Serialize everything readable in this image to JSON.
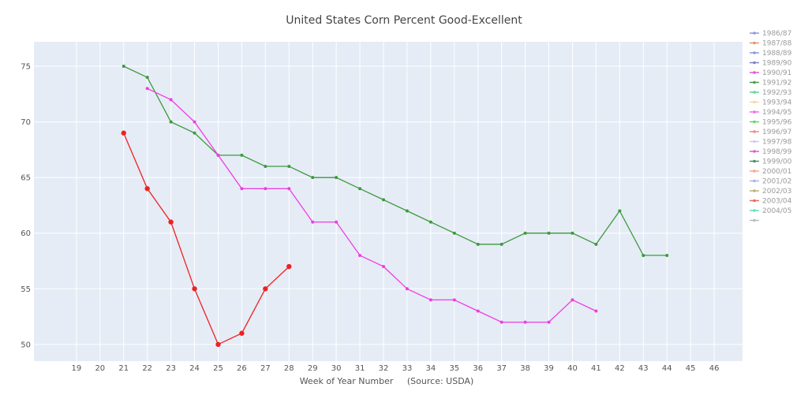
{
  "chart_data": {
    "type": "line",
    "title": "United States Corn Percent Good-Excellent",
    "xlabel": "Week of Year Number     (Source: USDA)",
    "ylabel": "",
    "x_ticks": [
      19,
      20,
      21,
      22,
      23,
      24,
      25,
      26,
      27,
      28,
      29,
      30,
      31,
      32,
      33,
      34,
      35,
      36,
      37,
      38,
      39,
      40,
      41,
      42,
      43,
      44,
      45,
      46
    ],
    "y_ticks": [
      50,
      55,
      60,
      65,
      70,
      75
    ],
    "xlim": [
      17.2,
      47.2
    ],
    "ylim": [
      48.5,
      77.2
    ],
    "grid": true,
    "legend_placement": "right",
    "legend": [
      {
        "name": "1986/87",
        "color": "#8f9ad6"
      },
      {
        "name": "1987/88",
        "color": "#e8946c"
      },
      {
        "name": "1988/89",
        "color": "#8f9ad6"
      },
      {
        "name": "1989/90",
        "color": "#7c84c8"
      },
      {
        "name": "1990/91",
        "color": "#e05ad6"
      },
      {
        "name": "1991/92",
        "color": "#4b9e4b"
      },
      {
        "name": "1992/93",
        "color": "#5fd49a"
      },
      {
        "name": "1993/94",
        "color": "#f2d9a4"
      },
      {
        "name": "1994/95",
        "color": "#ee6ee8"
      },
      {
        "name": "1995/96",
        "color": "#66d66e"
      },
      {
        "name": "1996/97",
        "color": "#ef8a84"
      },
      {
        "name": "1997/98",
        "color": "#d6c6f0"
      },
      {
        "name": "1998/99",
        "color": "#e05ad6"
      },
      {
        "name": "1999/00",
        "color": "#4b8e6b"
      },
      {
        "name": "2000/01",
        "color": "#f4a98a"
      },
      {
        "name": "2001/02",
        "color": "#aab4e8"
      },
      {
        "name": "2002/03",
        "color": "#b6b47a"
      },
      {
        "name": "2003/04",
        "color": "#ec6b5a"
      },
      {
        "name": "2004/05",
        "color": "#62e0c0"
      }
    ],
    "series": [
      {
        "color": "#3d9a3d",
        "marker_size": 2,
        "x": [
          21,
          22,
          23,
          24,
          25,
          26,
          27,
          28,
          29,
          30,
          31,
          32,
          33,
          34,
          35,
          36,
          37,
          38,
          39,
          40,
          41,
          42,
          43,
          44
        ],
        "y": [
          75,
          74,
          70,
          69,
          67,
          67,
          66,
          66,
          65,
          65,
          64,
          63,
          62,
          61,
          60,
          59,
          59,
          60,
          60,
          60,
          59,
          62,
          58,
          58
        ]
      },
      {
        "color": "#ee3ee2",
        "marker_size": 2,
        "x": [
          22,
          23,
          24,
          25,
          26,
          27,
          28,
          29,
          30,
          31,
          32,
          33,
          34,
          35,
          36,
          37,
          38,
          39,
          40,
          41
        ],
        "y": [
          73,
          72,
          70,
          67,
          64,
          64,
          64,
          61,
          61,
          58,
          57,
          55,
          54,
          54,
          53,
          52,
          52,
          52,
          54,
          53
        ]
      },
      {
        "color": "#ee2222",
        "marker_size": 3.2,
        "x": [
          21,
          22,
          23,
          24,
          25,
          26,
          27,
          28
        ],
        "y": [
          69,
          64,
          61,
          55,
          50,
          51,
          55,
          57
        ]
      }
    ]
  }
}
